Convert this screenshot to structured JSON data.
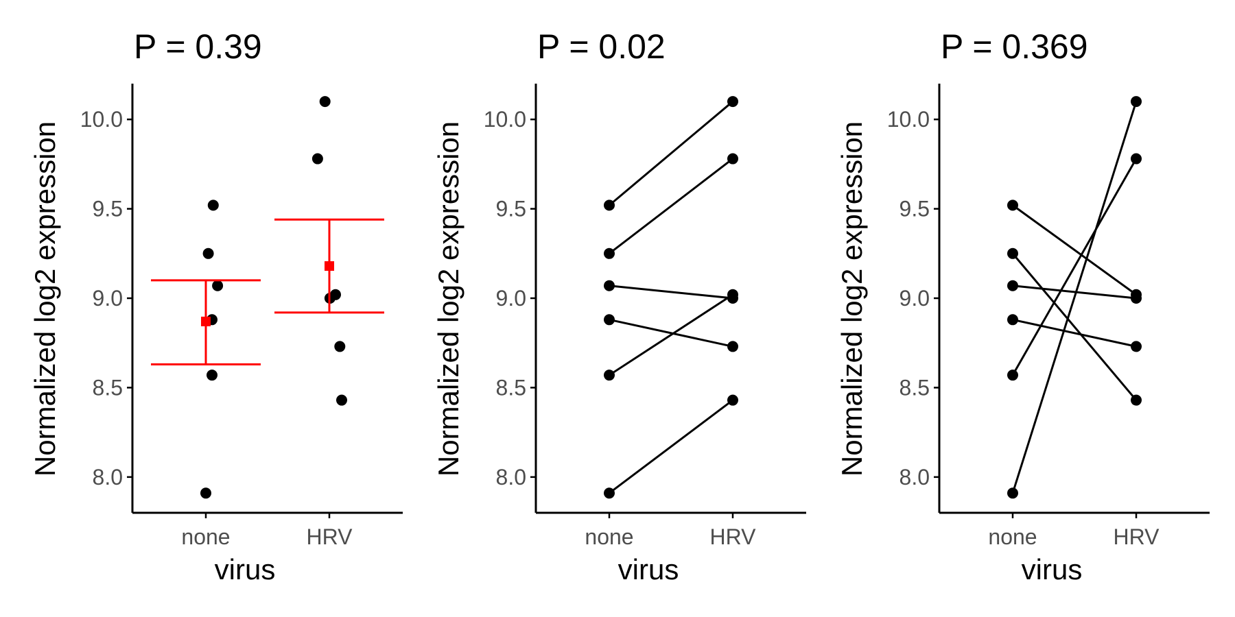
{
  "chart_data": [
    {
      "type": "scatter",
      "title": "P = 0.39",
      "xlabel": "virus",
      "ylabel": "Normalized log2 expression",
      "categories": [
        "none",
        "HRV"
      ],
      "yticks": [
        "8.0",
        "8.5",
        "9.0",
        "9.5",
        "10.0"
      ],
      "ylim": [
        7.8,
        10.2
      ],
      "grid": false,
      "series": [
        {
          "category": "none",
          "points": [
            [
              0.0,
              7.91
            ],
            [
              0.1,
              8.57
            ],
            [
              0.1,
              8.88
            ],
            [
              0.19,
              9.07
            ],
            [
              0.04,
              9.25
            ],
            [
              0.12,
              9.52
            ]
          ]
        },
        {
          "category": "HRV",
          "points": [
            [
              -0.19,
              9.78
            ],
            [
              -0.07,
              10.1
            ],
            [
              0.01,
              9.0
            ],
            [
              0.1,
              9.02
            ],
            [
              0.17,
              8.73
            ],
            [
              0.2,
              8.43
            ]
          ]
        }
      ],
      "summary": [
        {
          "category": "none",
          "mean": 8.87,
          "lower": 8.63,
          "upper": 9.1
        },
        {
          "category": "HRV",
          "mean": 9.18,
          "lower": 8.92,
          "upper": 9.44
        }
      ],
      "summary_color": "#ff0000"
    },
    {
      "type": "line",
      "title": "P = 0.02",
      "xlabel": "virus",
      "ylabel": "Normalized log2 expression",
      "categories": [
        "none",
        "HRV"
      ],
      "yticks": [
        "8.0",
        "8.5",
        "9.0",
        "9.5",
        "10.0"
      ],
      "ylim": [
        7.8,
        10.2
      ],
      "grid": false,
      "pairs": [
        [
          9.52,
          10.1
        ],
        [
          9.25,
          9.78
        ],
        [
          9.07,
          9.0
        ],
        [
          8.88,
          8.73
        ],
        [
          8.57,
          9.02
        ],
        [
          7.91,
          8.43
        ]
      ]
    },
    {
      "type": "line",
      "title": "P = 0.369",
      "xlabel": "virus",
      "ylabel": "Normalized log2 expression",
      "categories": [
        "none",
        "HRV"
      ],
      "yticks": [
        "8.0",
        "8.5",
        "9.0",
        "9.5",
        "10.0"
      ],
      "ylim": [
        7.8,
        10.2
      ],
      "grid": false,
      "pairs": [
        [
          9.52,
          9.02
        ],
        [
          9.25,
          8.43
        ],
        [
          9.07,
          9.0
        ],
        [
          8.88,
          8.73
        ],
        [
          8.57,
          9.78
        ],
        [
          7.91,
          10.1
        ]
      ]
    }
  ]
}
